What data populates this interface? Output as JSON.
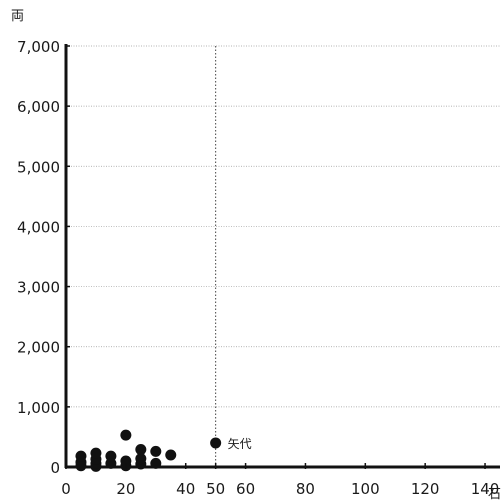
{
  "chart_data": {
    "type": "scatter",
    "ylabel": "両",
    "xlabel": "石",
    "xlim": [
      0,
      145
    ],
    "ylim": [
      0,
      7000
    ],
    "x_ticks": [
      "0",
      "20",
      "40",
      "50",
      "60",
      "80",
      "100",
      "120",
      "140"
    ],
    "y_ticks": [
      "0",
      "1,000",
      "2,000",
      "3,000",
      "4,000",
      "5,000",
      "6,000",
      "7,000"
    ],
    "grid": "horizontal",
    "reference_line": {
      "x": 50,
      "style": "dotted"
    },
    "annotation": {
      "text": "矢代",
      "x": 50,
      "y": 400
    },
    "series": [
      {
        "points": [
          {
            "x": 5,
            "y": 20
          },
          {
            "x": 5,
            "y": 80
          },
          {
            "x": 5,
            "y": 180
          },
          {
            "x": 10,
            "y": 10
          },
          {
            "x": 10,
            "y": 60
          },
          {
            "x": 10,
            "y": 130
          },
          {
            "x": 10,
            "y": 230
          },
          {
            "x": 15,
            "y": 60
          },
          {
            "x": 15,
            "y": 180
          },
          {
            "x": 20,
            "y": 20
          },
          {
            "x": 20,
            "y": 100
          },
          {
            "x": 20,
            "y": 530
          },
          {
            "x": 25,
            "y": 50
          },
          {
            "x": 25,
            "y": 140
          },
          {
            "x": 25,
            "y": 290
          },
          {
            "x": 30,
            "y": 60
          },
          {
            "x": 30,
            "y": 260
          },
          {
            "x": 35,
            "y": 200
          },
          {
            "x": 50,
            "y": 400
          }
        ]
      }
    ]
  }
}
